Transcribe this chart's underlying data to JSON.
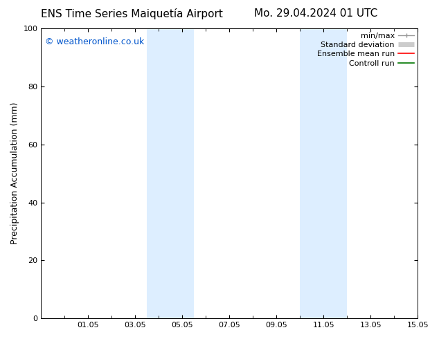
{
  "title_left": "ENS Time Series Maiquetía Airport",
  "title_right": "Mo. 29.04.2024 01 UTC",
  "ylabel": "Precipitation Accumulation (mm)",
  "watermark": "© weatheronline.co.uk",
  "watermark_color": "#0055cc",
  "bg_color": "#ffffff",
  "plot_bg_color": "#ffffff",
  "ylim": [
    0,
    100
  ],
  "x_min": 0,
  "x_max": 16,
  "xtick_labels": [
    "01.05",
    "03.05",
    "05.05",
    "07.05",
    "09.05",
    "11.05",
    "13.05",
    "15.05"
  ],
  "xtick_positions": [
    2,
    4,
    6,
    8,
    10,
    12,
    14,
    16
  ],
  "shaded_regions": [
    {
      "x_start": 4.5,
      "x_end": 6.5,
      "color": "#ddeeff"
    },
    {
      "x_start": 11.0,
      "x_end": 13.0,
      "color": "#ddeeff"
    }
  ],
  "legend_items": [
    {
      "label": "min/max",
      "color": "#999999",
      "lw": 1.0
    },
    {
      "label": "Standard deviation",
      "color": "#cccccc",
      "lw": 5.0
    },
    {
      "label": "Ensemble mean run",
      "color": "#ff0000",
      "lw": 1.2
    },
    {
      "label": "Controll run",
      "color": "#007700",
      "lw": 1.2
    }
  ],
  "font_size_title": 11,
  "font_size_axis": 9,
  "font_size_tick": 8,
  "font_size_legend": 8,
  "font_size_watermark": 9
}
